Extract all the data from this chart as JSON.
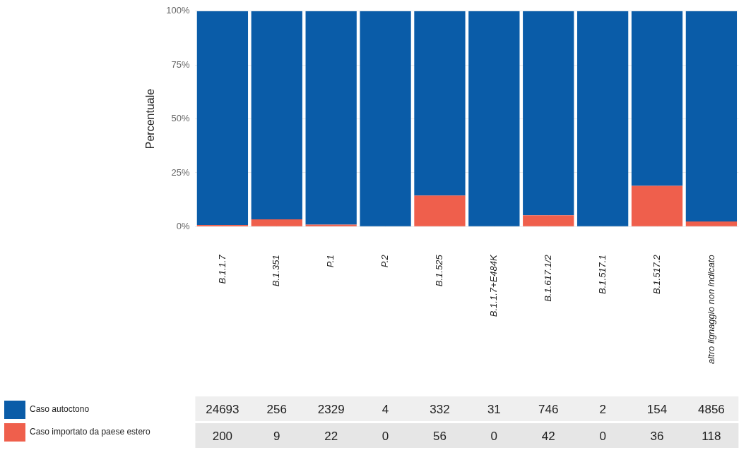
{
  "chart_data": [
    {
      "type": "bar",
      "stacked": true,
      "ylabel": "Percentuale",
      "categories": [
        "B.1.1.7",
        "B.1.351",
        "P.1",
        "P.2",
        "B.1.525",
        "B.1.1.7+E484K",
        "B.1.617.1/2",
        "B.1.517.1",
        "B.1.517.2",
        "altro lignaggio non indicato"
      ],
      "series": [
        {
          "color": "#ef5f4c",
          "values": [
            0.8,
            3.4,
            0.9,
            0,
            14.4,
            0,
            5.3,
            0,
            18.9,
            2.4
          ]
        },
        {
          "color": "#0a5ca8",
          "values": [
            99.2,
            96.6,
            99.1,
            100,
            85.6,
            100,
            94.7,
            100,
            81.1,
            97.6
          ]
        }
      ],
      "ylim": [
        0,
        100
      ],
      "yticks": [
        {
          "value": 0,
          "label": "0%"
        },
        {
          "value": 25,
          "label": "25%"
        },
        {
          "value": 50,
          "label": "50%"
        },
        {
          "value": 75,
          "label": "75%"
        },
        {
          "value": 100,
          "label": "100%"
        }
      ],
      "grid": true
    },
    {
      "type": "other",
      "legend": "left",
      "series": [
        {
          "name": "Caso autoctono",
          "color": "#0a5ca8"
        },
        {
          "name": "Caso importato da paese estero",
          "color": "#ef5f4c"
        }
      ],
      "annotations": [
        "24693",
        "256",
        "2329",
        "4",
        "332",
        "31",
        "746",
        "2",
        "154",
        "4856",
        "200",
        "9",
        "22",
        "0",
        "56",
        "0",
        "42",
        "0",
        "36",
        "118"
      ]
    }
  ]
}
